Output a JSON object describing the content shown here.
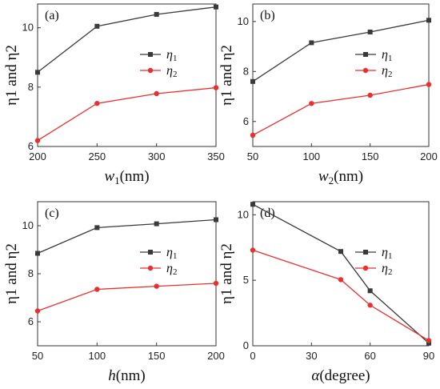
{
  "chart_data": [
    {
      "type": "line",
      "panel": "(a)",
      "xlabel_main": "w",
      "xlabel_sub": "1",
      "xlabel_unit": "(nm)",
      "ylabel": "η1 and η2",
      "x": [
        200,
        250,
        300,
        350
      ],
      "xticks": [
        "200",
        "250",
        "300",
        "350"
      ],
      "xlim": [
        200,
        350
      ],
      "ylim": [
        6,
        10.8
      ],
      "yticks": [
        6,
        8,
        10
      ],
      "legend_position": "center-right",
      "series": [
        {
          "name": "η1",
          "marker": "square",
          "color": "#3a3a3a",
          "values": [
            8.5,
            10.05,
            10.45,
            10.7
          ]
        },
        {
          "name": "η2",
          "marker": "circle",
          "color": "#e8312f",
          "values": [
            6.2,
            7.45,
            7.78,
            7.98
          ]
        }
      ]
    },
    {
      "type": "line",
      "panel": "(b)",
      "xlabel_main": "w",
      "xlabel_sub": "2",
      "xlabel_unit": "(nm)",
      "ylabel": "η1 and η2",
      "x": [
        50,
        100,
        150,
        200
      ],
      "xticks": [
        "50",
        "100",
        "150",
        "200"
      ],
      "xlim": [
        50,
        200
      ],
      "ylim": [
        5,
        10.7
      ],
      "yticks": [
        6,
        8,
        10
      ],
      "legend_position": "center-right",
      "series": [
        {
          "name": "η1",
          "marker": "square",
          "color": "#3a3a3a",
          "values": [
            7.6,
            9.15,
            9.58,
            10.05
          ]
        },
        {
          "name": "η2",
          "marker": "circle",
          "color": "#e8312f",
          "values": [
            5.45,
            6.72,
            7.05,
            7.48
          ]
        }
      ]
    },
    {
      "type": "line",
      "panel": "(c)",
      "xlabel_main": "h",
      "xlabel_sub": "",
      "xlabel_unit": "(nm)",
      "ylabel": "η1 and η2",
      "x": [
        50,
        100,
        150,
        200
      ],
      "xticks": [
        "50",
        "100",
        "150",
        "200"
      ],
      "xlim": [
        50,
        200
      ],
      "ylim": [
        5,
        11
      ],
      "yticks": [
        6,
        8,
        10
      ],
      "legend_position": "center-right",
      "series": [
        {
          "name": "η1",
          "marker": "square",
          "color": "#3a3a3a",
          "values": [
            8.85,
            9.92,
            10.08,
            10.25
          ]
        },
        {
          "name": "η2",
          "marker": "circle",
          "color": "#e8312f",
          "values": [
            6.45,
            7.35,
            7.48,
            7.6
          ]
        }
      ]
    },
    {
      "type": "line",
      "panel": "(d)",
      "xlabel_main": "α",
      "xlabel_sub": "",
      "xlabel_unit": "(degree)",
      "ylabel": "η1 and η2",
      "x": [
        0,
        45,
        60,
        90
      ],
      "xticks": [
        "0",
        "30",
        "60",
        "90"
      ],
      "xtick_values": [
        0,
        30,
        60,
        90
      ],
      "xlim": [
        0,
        90
      ],
      "ylim": [
        0,
        11
      ],
      "yticks": [
        0,
        5,
        10
      ],
      "legend_position": "center-right",
      "series": [
        {
          "name": "η1",
          "marker": "square",
          "color": "#3a3a3a",
          "values": [
            10.8,
            7.2,
            4.2,
            0.2
          ]
        },
        {
          "name": "η2",
          "marker": "circle",
          "color": "#e8312f",
          "values": [
            7.3,
            5.05,
            3.1,
            0.4
          ]
        }
      ]
    }
  ]
}
